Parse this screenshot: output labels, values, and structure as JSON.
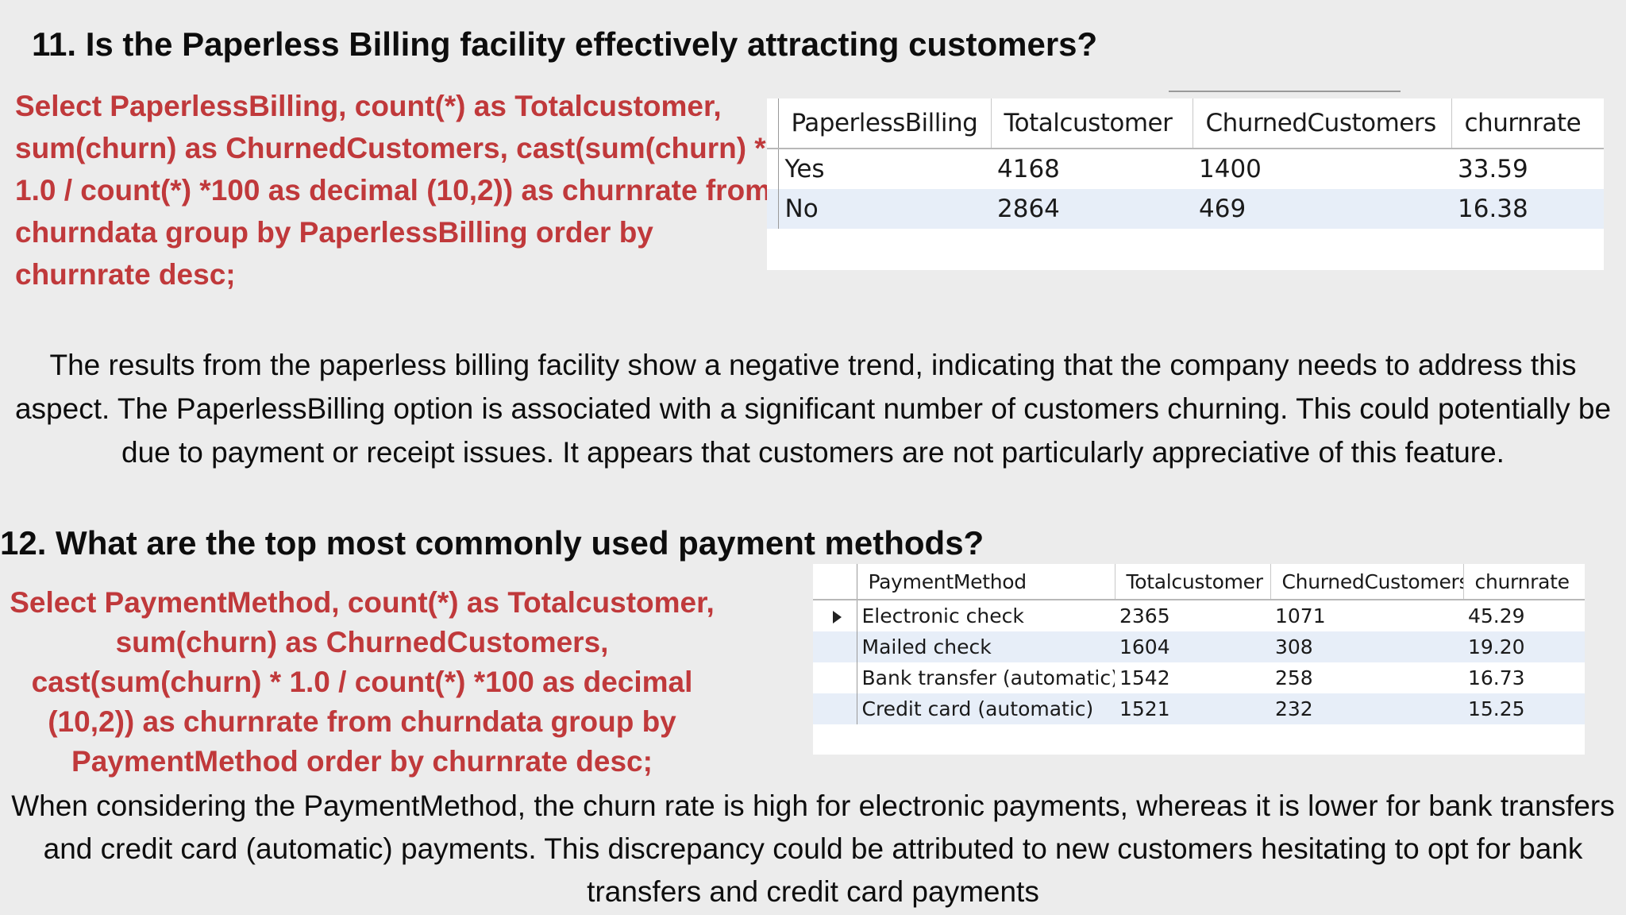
{
  "section11": {
    "heading": "11. Is the Paperless Billing facility effectively attracting customers?",
    "query": "Select PaperlessBilling, count(*) as Totalcustomer, sum(churn) as ChurnedCustomers, cast(sum(churn) * 1.0 / count(*) *100 as decimal (10,2)) as churnrate from churndata group by PaperlessBilling order by churnrate desc;",
    "columns": [
      "PaperlessBilling",
      "Totalcustomer",
      "ChurnedCustomers",
      "churnrate"
    ],
    "rows": [
      [
        "Yes",
        "4168",
        "1400",
        "33.59"
      ],
      [
        "No",
        "2864",
        "469",
        "16.38"
      ]
    ],
    "paragraph": "The results from the paperless billing facility show a negative trend, indicating that the company needs to address this aspect. The PaperlessBilling option is associated with a significant number of customers churning. This could potentially be due to payment or receipt issues. It appears that customers are not particularly appreciative of this feature."
  },
  "section12": {
    "heading": "12. What are the top most commonly used payment methods?",
    "query": "Select PaymentMethod, count(*) as Totalcustomer, sum(churn) as ChurnedCustomers, cast(sum(churn) * 1.0 / count(*) *100 as decimal (10,2)) as churnrate from churndata group by PaymentMethod order by churnrate desc;",
    "columns": [
      "PaymentMethod",
      "Totalcustomer",
      "ChurnedCustomers",
      "churnrate"
    ],
    "rows": [
      [
        "Electronic check",
        "2365",
        "1071",
        "45.29"
      ],
      [
        "Mailed check",
        "1604",
        "308",
        "19.20"
      ],
      [
        "Bank transfer (automatic)",
        "1542",
        "258",
        "16.73"
      ],
      [
        "Credit card (automatic)",
        "1521",
        "232",
        "15.25"
      ]
    ],
    "paragraph": "When considering the PaymentMethod, the churn rate is high for electronic payments, whereas it is lower for bank transfers and credit card (automatic) payments. This discrepancy could be attributed to new customers hesitating to opt for bank transfers and credit card payments"
  }
}
